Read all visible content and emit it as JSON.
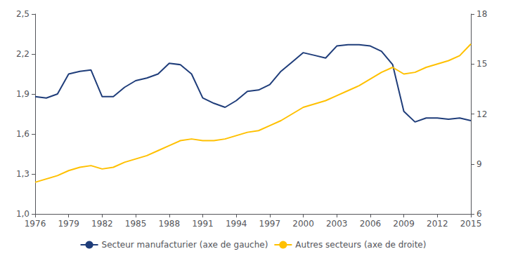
{
  "chart_data": {
    "type": "line",
    "x": [
      1976,
      1977,
      1978,
      1979,
      1980,
      1981,
      1982,
      1983,
      1984,
      1985,
      1986,
      1987,
      1988,
      1989,
      1990,
      1991,
      1992,
      1993,
      1994,
      1995,
      1996,
      1997,
      1998,
      1999,
      2000,
      2001,
      2002,
      2003,
      2004,
      2005,
      2006,
      2007,
      2008,
      2009,
      2010,
      2011,
      2012,
      2013,
      2014,
      2015
    ],
    "xlim": [
      1976,
      2015
    ],
    "xticks": [
      1976,
      1979,
      1982,
      1985,
      1988,
      1991,
      1994,
      1997,
      2000,
      2003,
      2006,
      2009,
      2012,
      2015
    ],
    "ylim": [
      1.0,
      2.5
    ],
    "yticks": [
      {
        "value": 1.0,
        "label": "1,0"
      },
      {
        "value": 1.3,
        "label": "1,3"
      },
      {
        "value": 1.6,
        "label": "1,6"
      },
      {
        "value": 1.9,
        "label": "1,9"
      },
      {
        "value": 2.2,
        "label": "2,2"
      },
      {
        "value": 2.5,
        "label": "2,5"
      }
    ],
    "y2lim": [
      6,
      18
    ],
    "y2ticks": [
      6,
      9,
      12,
      15,
      18
    ],
    "series": [
      {
        "name": "Secteur manufacturier (axe de gauche)",
        "color": "#1F3D7A",
        "values": [
          1.88,
          1.87,
          1.9,
          2.05,
          2.07,
          2.08,
          1.88,
          1.88,
          1.95,
          2.0,
          2.02,
          2.05,
          2.13,
          2.12,
          2.05,
          1.87,
          1.83,
          1.8,
          1.85,
          1.92,
          1.93,
          1.97,
          2.07,
          2.14,
          2.21,
          2.19,
          2.17,
          2.26,
          2.27,
          2.27,
          2.26,
          2.22,
          2.12,
          1.77,
          1.69,
          1.72,
          1.72,
          1.71,
          1.72,
          1.7
        ]
      },
      {
        "name": "Autres secteurs (axe de droite)",
        "color": "#FFC000",
        "axis": "y2",
        "values": [
          7.9,
          8.1,
          8.3,
          8.6,
          8.8,
          8.9,
          8.7,
          8.8,
          9.1,
          9.3,
          9.5,
          9.8,
          10.1,
          10.4,
          10.5,
          10.4,
          10.4,
          10.5,
          10.7,
          10.9,
          11.0,
          11.3,
          11.6,
          12.0,
          12.4,
          12.6,
          12.8,
          13.1,
          13.4,
          13.7,
          14.1,
          14.5,
          14.8,
          14.4,
          14.5,
          14.8,
          15.0,
          15.2,
          15.5,
          16.2
        ]
      }
    ],
    "grid": false,
    "legend": "bottom"
  }
}
